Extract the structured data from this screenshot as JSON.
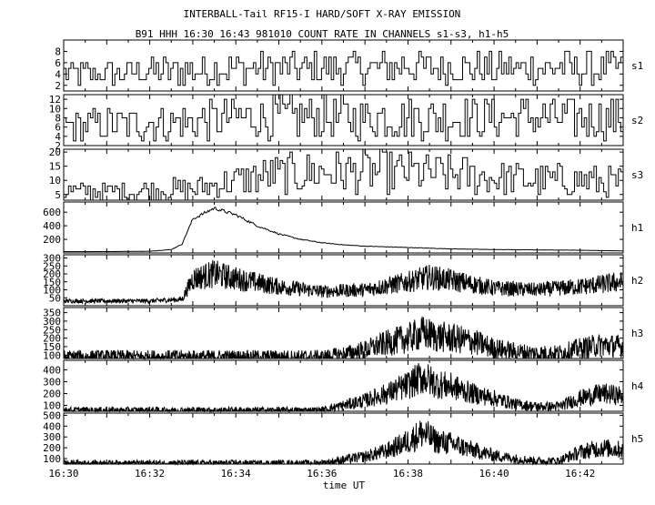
{
  "chart_data": {
    "type": "line",
    "title": "INTERBALL-Tail RF15-I HARD/SOFT X-RAY EMISSION",
    "subtitle": "B91 HHH 16:30 16:43 981010  COUNT RATE IN CHANNELS s1-s3, h1-h5",
    "xlabel": "time UT",
    "x_range": [
      "16:30",
      "16:43"
    ],
    "x_tick_labels": [
      "16:30",
      "16:32",
      "16:34",
      "16:36",
      "16:38",
      "16:40",
      "16:42"
    ],
    "grid": false,
    "panels": [
      {
        "label": "s1",
        "ylim": [
          1,
          10
        ],
        "y_ticks": [
          2,
          4,
          6,
          8
        ],
        "x": [
          "16:30",
          "16:31",
          "16:32",
          "16:33",
          "16:34",
          "16:35",
          "16:36",
          "16:37",
          "16:38",
          "16:39",
          "16:40",
          "16:41",
          "16:42",
          "16:43"
        ],
        "y": [
          4,
          4,
          4.5,
          4.5,
          5,
          5,
          5,
          5,
          5.5,
          5,
          5,
          5,
          5,
          5
        ]
      },
      {
        "label": "s2",
        "ylim": [
          2,
          13
        ],
        "y_ticks": [
          2,
          4,
          6,
          8,
          10,
          12
        ],
        "x": [
          "16:30",
          "16:31",
          "16:32",
          "16:33",
          "16:34",
          "16:35",
          "16:36",
          "16:37",
          "16:38",
          "16:39",
          "16:40",
          "16:41",
          "16:42",
          "16:43"
        ],
        "y": [
          6,
          6.5,
          7,
          7,
          8,
          8,
          8,
          8,
          8,
          8,
          8,
          8,
          8,
          8
        ]
      },
      {
        "label": "s3",
        "ylim": [
          3,
          21
        ],
        "y_ticks": [
          5,
          10,
          15,
          20
        ],
        "x": [
          "16:30",
          "16:31",
          "16:32",
          "16:33",
          "16:34",
          "16:35",
          "16:36",
          "16:37",
          "16:38",
          "16:39",
          "16:40",
          "16:41",
          "16:42",
          "16:43"
        ],
        "y": [
          6,
          6,
          6.5,
          7,
          10,
          12,
          13,
          13,
          13,
          12,
          11,
          10,
          10,
          9
        ]
      },
      {
        "label": "h1",
        "ylim": [
          0,
          750
        ],
        "y_ticks": [
          200,
          400,
          600
        ],
        "x": [
          "16:30",
          "16:31",
          "16:32",
          "16:32:30",
          "16:32:45",
          "16:33",
          "16:33:30",
          "16:34",
          "16:34:30",
          "16:35",
          "16:35:30",
          "16:36",
          "16:36:30",
          "16:37",
          "16:38",
          "16:39",
          "16:40",
          "16:41",
          "16:42",
          "16:43"
        ],
        "y": [
          20,
          20,
          25,
          50,
          130,
          500,
          660,
          560,
          400,
          280,
          200,
          150,
          120,
          100,
          80,
          60,
          50,
          45,
          40,
          30
        ]
      },
      {
        "label": "h2",
        "ylim": [
          0,
          320
        ],
        "y_ticks": [
          50,
          100,
          150,
          200,
          250,
          300
        ],
        "x": [
          "16:30",
          "16:31",
          "16:32",
          "16:32:45",
          "16:33",
          "16:33:30",
          "16:34",
          "16:35",
          "16:36",
          "16:37",
          "16:38",
          "16:38:30",
          "16:39",
          "16:40",
          "16:41",
          "16:42",
          "16:43"
        ],
        "y": [
          30,
          30,
          30,
          40,
          170,
          200,
          170,
          120,
          90,
          100,
          150,
          180,
          160,
          110,
          100,
          120,
          150
        ]
      },
      {
        "label": "h3",
        "ylim": [
          80,
          380
        ],
        "y_ticks": [
          100,
          150,
          200,
          250,
          300,
          350
        ],
        "x": [
          "16:30",
          "16:35",
          "16:36",
          "16:36:30",
          "16:37",
          "16:37:30",
          "16:38",
          "16:38:20",
          "16:38:40",
          "16:39",
          "16:39:30",
          "16:40",
          "16:40:30",
          "16:41",
          "16:41:30",
          "16:42",
          "16:42:30",
          "16:43"
        ],
        "y": [
          90,
          90,
          90,
          105,
          130,
          170,
          200,
          230,
          210,
          200,
          180,
          140,
          120,
          110,
          110,
          140,
          160,
          150
        ]
      },
      {
        "label": "h4",
        "ylim": [
          50,
          480
        ],
        "y_ticks": [
          100,
          200,
          300,
          400
        ],
        "x": [
          "16:30",
          "16:35",
          "16:36",
          "16:36:30",
          "16:37",
          "16:37:30",
          "16:38",
          "16:38:20",
          "16:38:40",
          "16:39",
          "16:39:30",
          "16:40",
          "16:40:30",
          "16:41",
          "16:41:30",
          "16:42",
          "16:42:30",
          "16:43"
        ],
        "y": [
          60,
          60,
          60,
          100,
          140,
          200,
          270,
          340,
          280,
          260,
          200,
          160,
          110,
          90,
          90,
          160,
          200,
          180
        ]
      },
      {
        "label": "h5",
        "ylim": [
          50,
          520
        ],
        "y_ticks": [
          100,
          200,
          300,
          400,
          500
        ],
        "x": [
          "16:30",
          "16:35",
          "16:36",
          "16:36:30",
          "16:37",
          "16:37:30",
          "16:38",
          "16:38:20",
          "16:38:40",
          "16:39",
          "16:39:30",
          "16:40",
          "16:40:30",
          "16:41",
          "16:41:30",
          "16:42",
          "16:42:30",
          "16:43"
        ],
        "y": [
          60,
          60,
          60,
          90,
          120,
          170,
          260,
          340,
          260,
          240,
          180,
          130,
          100,
          80,
          80,
          160,
          200,
          180
        ]
      }
    ]
  }
}
